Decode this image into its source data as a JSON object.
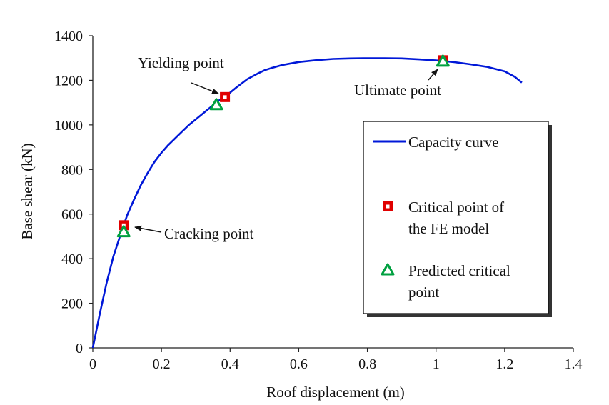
{
  "chart_data": {
    "type": "line",
    "xlabel": "Roof displacement  (m)",
    "ylabel": "Base shear  (kN)",
    "xlim": [
      0,
      1.4
    ],
    "ylim": [
      0,
      1400
    ],
    "x_ticks": [
      "0",
      "0.2",
      "0.4",
      "0.6",
      "0.8",
      "1",
      "1.2",
      "1.4"
    ],
    "y_ticks": [
      "0",
      "200",
      "400",
      "600",
      "800",
      "1000",
      "1200",
      "1400"
    ],
    "grid": false,
    "legend_position": "right",
    "series": [
      {
        "name": "Capacity curve",
        "color": "#0018d8",
        "x": [
          0,
          0.02,
          0.04,
          0.06,
          0.08,
          0.09,
          0.1,
          0.12,
          0.14,
          0.16,
          0.18,
          0.2,
          0.22,
          0.24,
          0.26,
          0.28,
          0.3,
          0.32,
          0.34,
          0.36,
          0.38,
          0.4,
          0.42,
          0.45,
          0.48,
          0.5,
          0.52,
          0.55,
          0.6,
          0.65,
          0.7,
          0.75,
          0.8,
          0.85,
          0.9,
          0.95,
          1.0,
          1.05,
          1.1,
          1.15,
          1.2,
          1.23,
          1.25
        ],
        "y": [
          0,
          150,
          290,
          410,
          505,
          550,
          595,
          665,
          730,
          785,
          835,
          875,
          910,
          940,
          970,
          1000,
          1025,
          1050,
          1075,
          1100,
          1125,
          1145,
          1170,
          1205,
          1230,
          1245,
          1255,
          1268,
          1282,
          1290,
          1296,
          1298,
          1299,
          1299,
          1298,
          1294,
          1289,
          1282,
          1272,
          1260,
          1240,
          1215,
          1190
        ]
      },
      {
        "name": "Critical point of the FE model",
        "marker": "square",
        "color": "#e00000",
        "x": [
          0.09,
          0.385,
          1.02
        ],
        "y": [
          550,
          1125,
          1290
        ]
      },
      {
        "name": "Predicted critical point",
        "marker": "triangle",
        "color": "#00a040",
        "x": [
          0.09,
          0.36,
          1.02
        ],
        "y": [
          520,
          1090,
          1285
        ]
      }
    ],
    "annotations": [
      {
        "text": "Yielding  point",
        "x": 0.385,
        "y": 1125
      },
      {
        "text": "Cracking  point",
        "x": 0.09,
        "y": 550
      },
      {
        "text": "Ultimate  point",
        "x": 1.02,
        "y": 1285
      }
    ],
    "legend": {
      "entries": [
        {
          "marker": "line",
          "lines": [
            "Capacity curve"
          ]
        },
        {
          "marker": "square",
          "lines": [
            "Critical point of",
            "the FE model"
          ]
        },
        {
          "marker": "triangle",
          "lines": [
            "Predicted critical",
            "point"
          ]
        }
      ]
    }
  }
}
